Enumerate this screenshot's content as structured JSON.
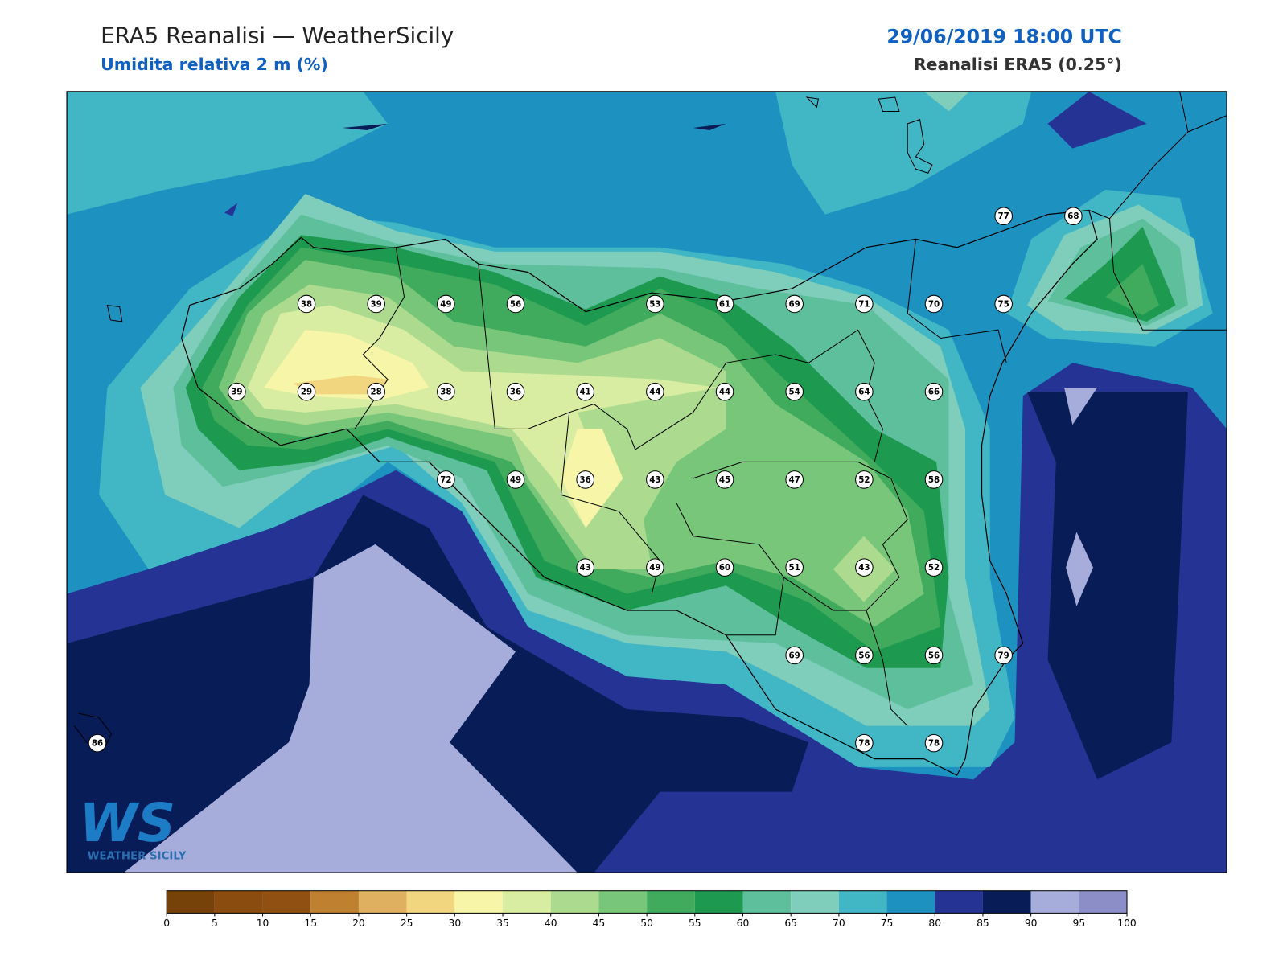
{
  "header": {
    "title": "ERA5 Reanalisi — WeatherSicily",
    "subtitle": "Umidita relativa 2 m (%)",
    "datetime": "29/06/2019 18:00 UTC",
    "source": "Reanalisi ERA5 (0.25°)"
  },
  "map": {
    "station_grid": [
      [
        null,
        null,
        null,
        null,
        null,
        null,
        null,
        null,
        null,
        null,
        null,
        null,
        null,
        77,
        68
      ],
      [
        null,
        null,
        null,
        38,
        39,
        49,
        56,
        null,
        53,
        61,
        69,
        71,
        70,
        75,
        null
      ],
      [
        null,
        null,
        39,
        29,
        28,
        38,
        36,
        41,
        44,
        44,
        54,
        64,
        66,
        null,
        null
      ],
      [
        null,
        null,
        null,
        null,
        null,
        72,
        49,
        36,
        43,
        45,
        47,
        52,
        58,
        null,
        null
      ],
      [
        null,
        null,
        null,
        null,
        null,
        null,
        null,
        43,
        49,
        60,
        51,
        43,
        52,
        null,
        null
      ],
      [
        null,
        null,
        null,
        null,
        null,
        null,
        null,
        null,
        null,
        null,
        69,
        56,
        56,
        79,
        null
      ],
      [
        86,
        null,
        null,
        null,
        null,
        null,
        null,
        null,
        null,
        null,
        null,
        78,
        78,
        null,
        null
      ]
    ]
  },
  "colorbar": {
    "ticks": [
      0,
      5,
      10,
      15,
      20,
      25,
      30,
      35,
      40,
      45,
      50,
      55,
      60,
      65,
      70,
      75,
      80,
      85,
      90,
      95,
      100
    ],
    "colors": [
      "#774209",
      "#8b4c0f",
      "#8f5012",
      "#bf8030",
      "#dfb060",
      "#f1d57f",
      "#f6f5a8",
      "#d8eda2",
      "#acdb8f",
      "#78c679",
      "#41ab5d",
      "#1d9a50",
      "#5dbf9c",
      "#7fcdbb",
      "#41b6c4",
      "#1d91c0",
      "#253494",
      "#081d58",
      "#a6addb",
      "#8c8ec8"
    ]
  },
  "logo": {
    "mark": "WS",
    "text": "WEATHER SICILY"
  }
}
